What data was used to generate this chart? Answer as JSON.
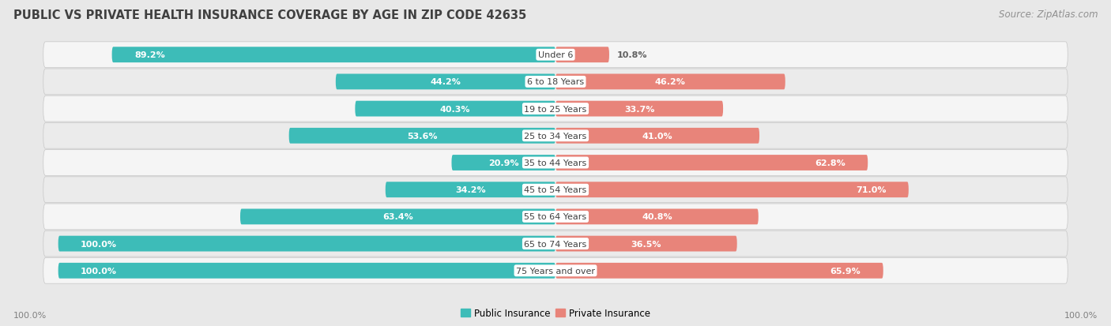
{
  "title": "PUBLIC VS PRIVATE HEALTH INSURANCE COVERAGE BY AGE IN ZIP CODE 42635",
  "source": "Source: ZipAtlas.com",
  "categories": [
    "Under 6",
    "6 to 18 Years",
    "19 to 25 Years",
    "25 to 34 Years",
    "35 to 44 Years",
    "45 to 54 Years",
    "55 to 64 Years",
    "65 to 74 Years",
    "75 Years and over"
  ],
  "public_values": [
    89.2,
    44.2,
    40.3,
    53.6,
    20.9,
    34.2,
    63.4,
    100.0,
    100.0
  ],
  "private_values": [
    10.8,
    46.2,
    33.7,
    41.0,
    62.8,
    71.0,
    40.8,
    36.5,
    65.9
  ],
  "public_color": "#3dbcb8",
  "private_color": "#e8847a",
  "bg_color": "#e8e8e8",
  "row_light_color": "#f5f5f5",
  "row_dark_color": "#ebebeb",
  "title_color": "#404040",
  "source_color": "#909090",
  "value_inside_color": "#ffffff",
  "value_outside_color": "#606060",
  "label_color": "#404040",
  "bar_height": 0.58,
  "max_value": 100.0,
  "footer_label": "100.0%",
  "inside_threshold": 12.0,
  "label_fontsize": 8.0,
  "value_fontsize": 8.0,
  "title_fontsize": 10.5,
  "source_fontsize": 8.5
}
